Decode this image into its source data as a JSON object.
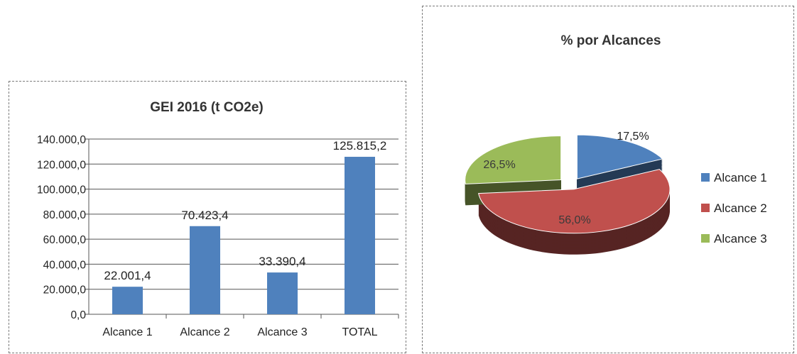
{
  "chart_data": [
    {
      "type": "bar",
      "title": "GEI 2016 (t CO2e)",
      "categories": [
        "Alcance 1",
        "Alcance 2",
        "Alcance 3",
        "TOTAL"
      ],
      "values": [
        22001.4,
        70423.4,
        33390.4,
        125815.2
      ],
      "value_labels": [
        "22.001,4",
        "70.423,4",
        "33.390,4",
        "125.815,2"
      ],
      "ylim": [
        0,
        140000
      ],
      "yticks": [
        0,
        20000,
        40000,
        60000,
        80000,
        100000,
        120000,
        140000
      ],
      "ytick_labels": [
        "0,0",
        "20.000,0",
        "40.000,0",
        "60.000,0",
        "80.000,0",
        "100.000,0",
        "120.000,0",
        "140.000,0"
      ],
      "grid": true,
      "bar_color": "#4f81bd",
      "xlabel": "",
      "ylabel": ""
    },
    {
      "type": "pie",
      "title": "% por Alcances",
      "labels": [
        "Alcance 1",
        "Alcance 2",
        "Alcance 3"
      ],
      "values": [
        17.5,
        56.0,
        26.5
      ],
      "value_labels": [
        "17,5%",
        "56,0%",
        "26,5%"
      ],
      "colors": [
        "#4f81bd",
        "#c0504d",
        "#9bbb59"
      ],
      "exploded": true,
      "three_d": true,
      "legend": "right"
    }
  ]
}
